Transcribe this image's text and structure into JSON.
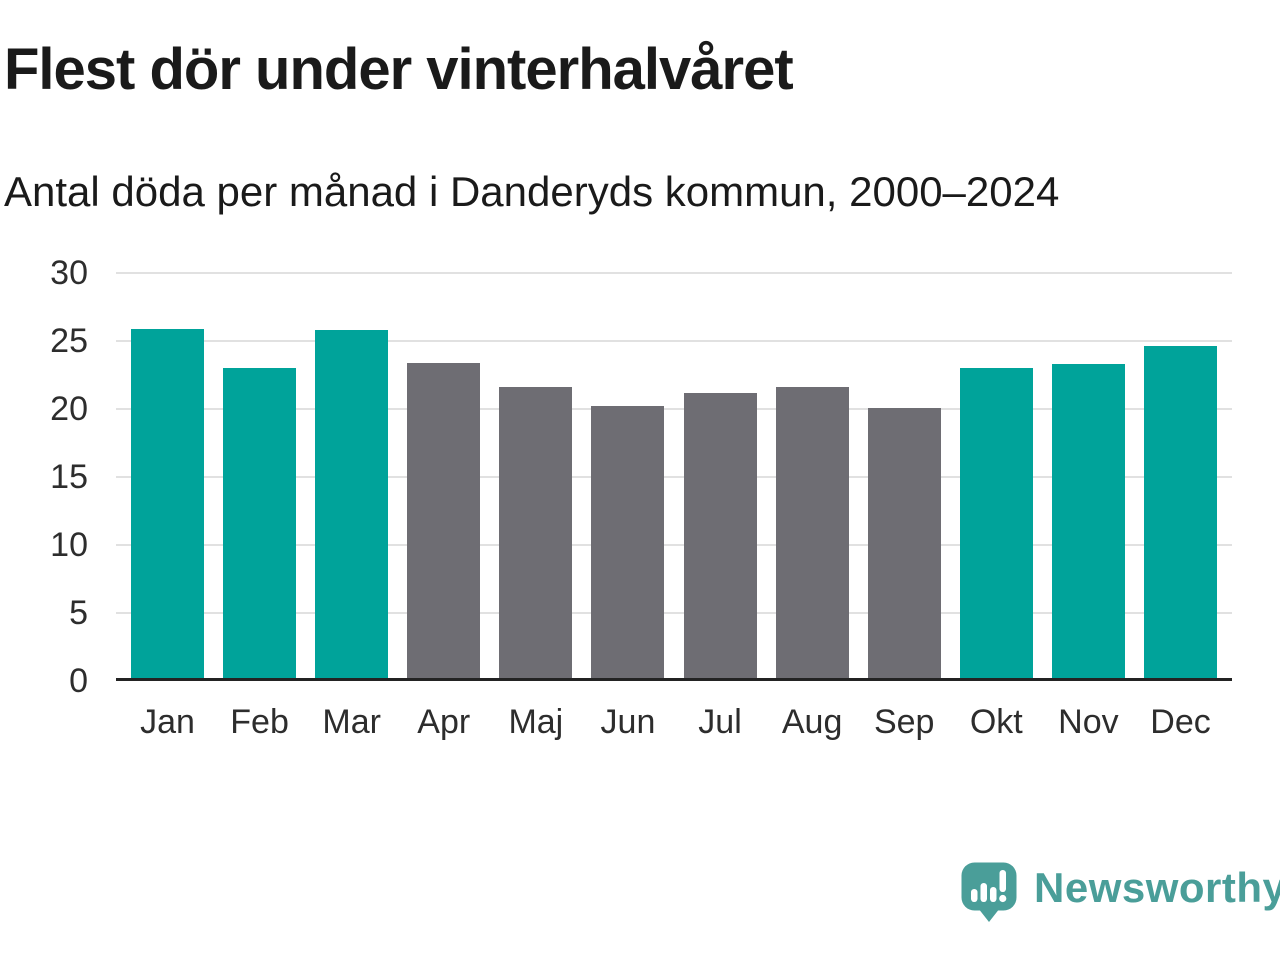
{
  "header": {
    "title": "Flest dör under vinterhalvåret",
    "subtitle": "Antal döda per månad i Danderyds kommun, 2000–2024"
  },
  "footer": {
    "brand": "Newsworthy"
  },
  "chart_data": {
    "type": "bar",
    "title": "Flest dör under vinterhalvåret",
    "subtitle": "Antal döda per månad i Danderyds kommun, 2000–2024",
    "categories": [
      "Jan",
      "Feb",
      "Mar",
      "Apr",
      "Maj",
      "Jun",
      "Jul",
      "Aug",
      "Sep",
      "Okt",
      "Nov",
      "Dec"
    ],
    "values": [
      25.9,
      23.0,
      25.8,
      23.4,
      21.6,
      20.2,
      21.2,
      21.6,
      20.1,
      23.0,
      23.3,
      24.6
    ],
    "highlight_months": [
      "Jan",
      "Feb",
      "Mar",
      "Okt",
      "Nov",
      "Dec"
    ],
    "colors": {
      "winter": "#00A39A",
      "summer": "#6E6D73",
      "gridline": "#E1E1E1",
      "axis": "#232323",
      "logo": "#4A9E99"
    },
    "xlabel": "",
    "ylabel": "",
    "ylim": [
      0,
      30
    ],
    "yticks": [
      0,
      5,
      10,
      15,
      20,
      25,
      30
    ],
    "grid": true,
    "legend": "none"
  }
}
